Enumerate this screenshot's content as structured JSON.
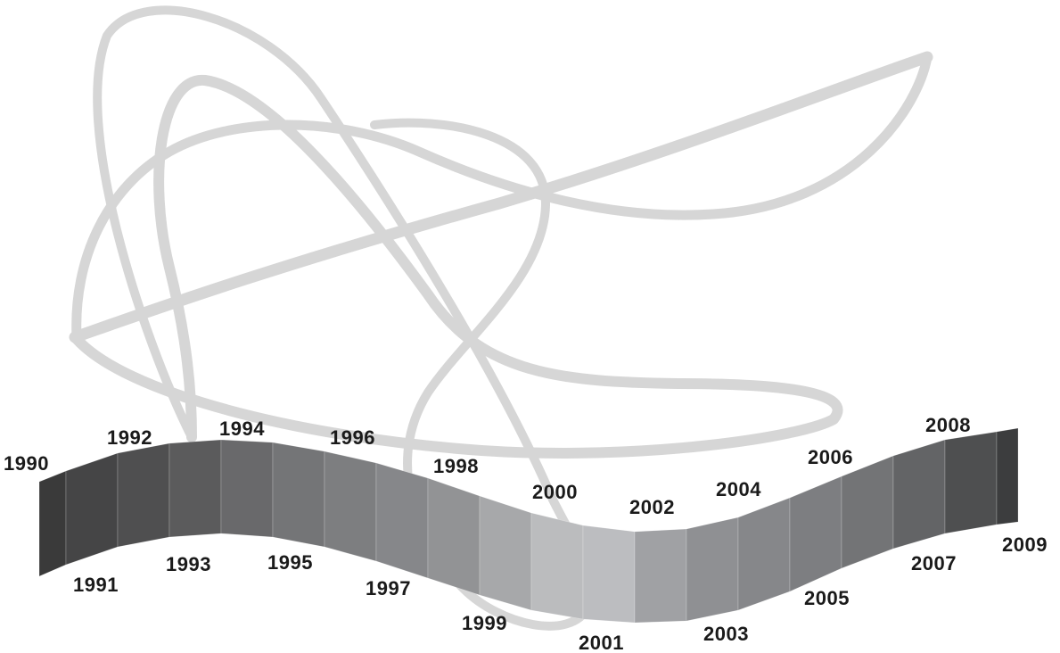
{
  "timeline": {
    "years": [
      "1990",
      "1991",
      "1992",
      "1993",
      "1994",
      "1995",
      "1996",
      "1997",
      "1998",
      "1999",
      "2000",
      "2001",
      "2002",
      "2003",
      "2004",
      "2005",
      "2006",
      "2007",
      "2008",
      "2009"
    ],
    "segment_colors": [
      "#3a3a3a",
      "#454546",
      "#4f4f50",
      "#5b5b5c",
      "#69696b",
      "#747577",
      "#7d7e80",
      "#86878a",
      "#929395",
      "#a7a8aa",
      "#bbbcbe",
      "#bcbdc0",
      "#a0a1a4",
      "#8f9093",
      "#86878a",
      "#7d7e81",
      "#737476",
      "#636466",
      "#4e4f50",
      "#3c3d3e",
      "#333334"
    ]
  },
  "colors": {
    "ribbon": "#d6d6d6",
    "background": "#ffffff",
    "label": "#1a1a1a"
  }
}
